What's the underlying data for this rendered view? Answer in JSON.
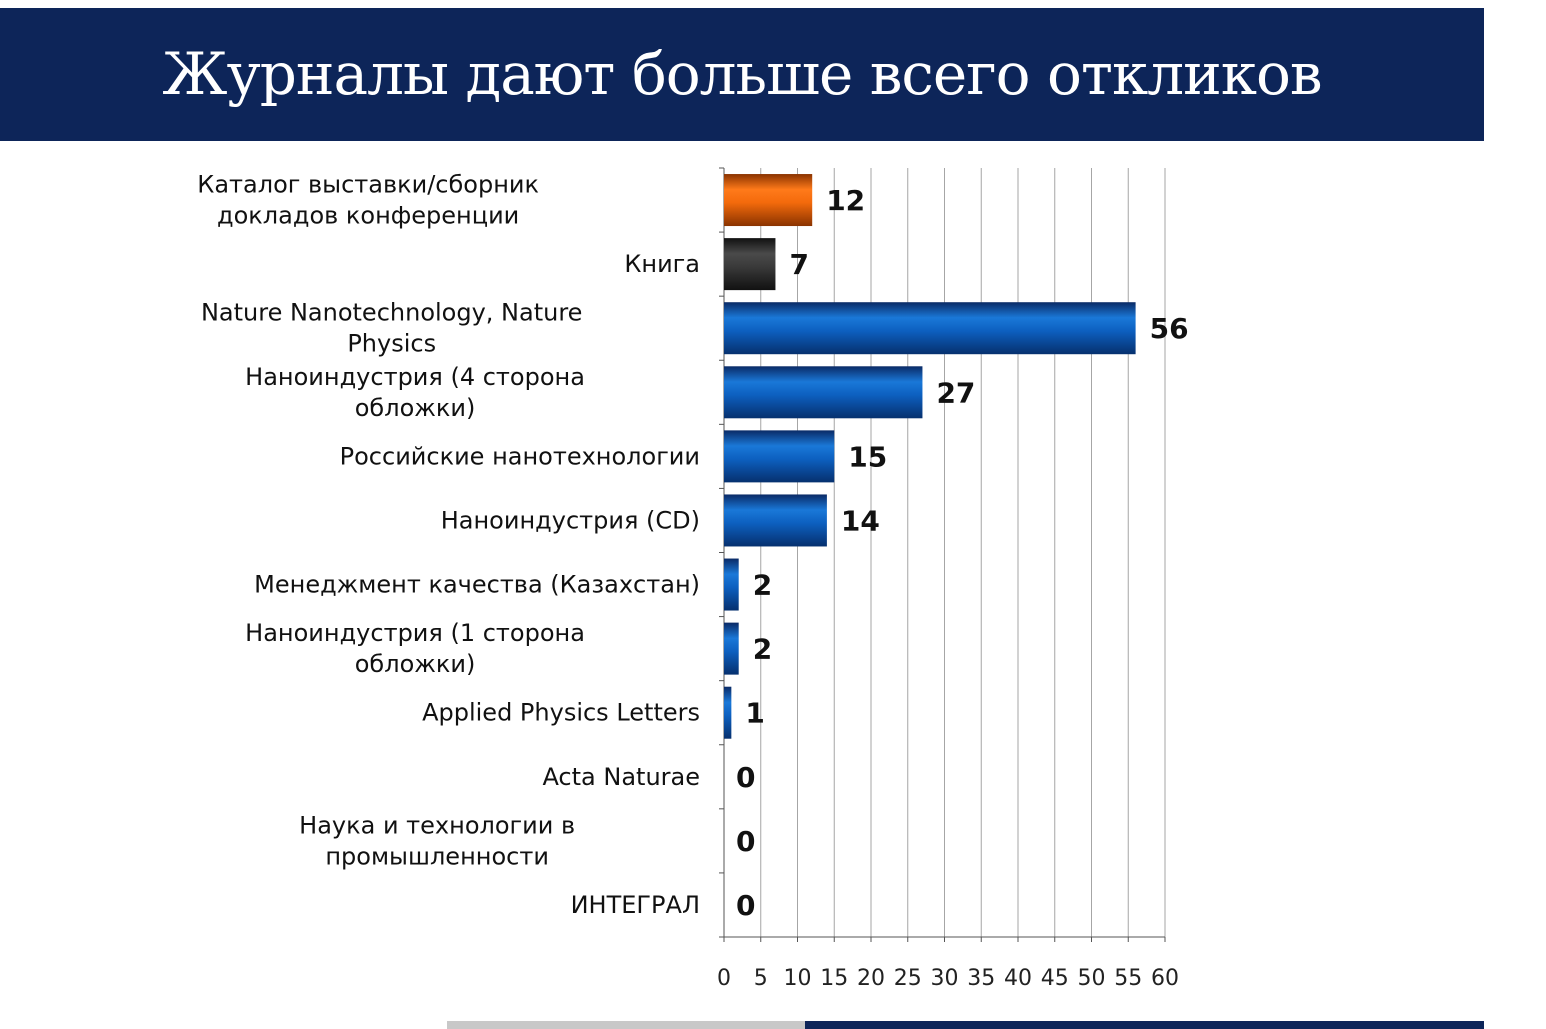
{
  "header": {
    "title": "Журналы дают больше всего откликов"
  },
  "colors": {
    "header_bg": "#0d2559",
    "bar_blue": "#0a5cb8",
    "bar_orange": "#f36a0c",
    "bar_dark": "#3a3a3a",
    "grid": "#9a9a9a"
  },
  "chart_data": {
    "type": "bar",
    "orientation": "horizontal",
    "categories": [
      [
        "Каталог выставки/сборник",
        "докладов конференции"
      ],
      [
        "Книга"
      ],
      [
        "Nature Nanotechnology, Nature",
        "Physics"
      ],
      [
        "Наноиндустрия (4 сторона",
        "обложки)"
      ],
      [
        "Российские нанотехнологии"
      ],
      [
        "Наноиндустрия (CD)"
      ],
      [
        "Менеджмент качества (Казахстан)"
      ],
      [
        "Наноиндустрия (1 сторона",
        "обложки)"
      ],
      [
        "Applied Physics Letters"
      ],
      [
        "Acta Naturae"
      ],
      [
        "Наука и технологии в",
        "промышленности"
      ],
      [
        "ИНТЕГРАЛ"
      ]
    ],
    "values": [
      12,
      7,
      56,
      27,
      15,
      14,
      2,
      2,
      1,
      0,
      0,
      0
    ],
    "bar_colors": [
      "orange",
      "dark",
      "blue",
      "blue",
      "blue",
      "blue",
      "blue",
      "blue",
      "blue",
      "blue",
      "blue",
      "blue"
    ],
    "data_labels": [
      "12",
      "7",
      "56",
      "27",
      "15",
      "14",
      "2",
      "2",
      "1",
      "0",
      "0",
      "0"
    ],
    "xlim": [
      0,
      60
    ],
    "xticks": [
      0,
      5,
      10,
      15,
      20,
      25,
      30,
      35,
      40,
      45,
      50,
      55,
      60
    ],
    "grid": true,
    "legend": "none"
  }
}
